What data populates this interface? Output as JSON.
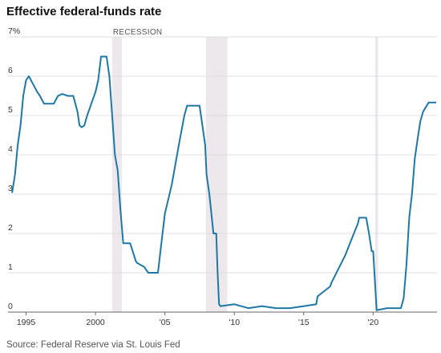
{
  "title": "Effective federal-funds rate",
  "source": "Source: Federal Reserve via St. Louis Fed",
  "chart_data": {
    "type": "line",
    "title": "Effective federal-funds rate",
    "xlabel": "",
    "ylabel": "",
    "xlim": [
      1993.7,
      2024.6
    ],
    "ylim": [
      0,
      7
    ],
    "y_ticks": [
      0,
      1,
      2,
      3,
      4,
      5,
      6,
      7
    ],
    "y_tick_labels": [
      "0",
      "1",
      "2",
      "3",
      "4",
      "5",
      "6",
      "7%"
    ],
    "x_ticks": [
      1995,
      2000,
      2005,
      2010,
      2015,
      2020
    ],
    "x_tick_labels": [
      "1995",
      "2000",
      "'05",
      "'10",
      "'15",
      "'20"
    ],
    "grid": true,
    "line_color": "#1f77a6",
    "recession_color": "#ece8ec",
    "recessions": [
      {
        "start": 2001.2,
        "end": 2001.9,
        "label": "RECESSION"
      },
      {
        "start": 2007.95,
        "end": 2009.5,
        "label": ""
      },
      {
        "start": 2020.15,
        "end": 2020.35,
        "label": ""
      }
    ],
    "series": [
      {
        "x": [
          1994.0,
          1994.2,
          1994.4,
          1994.6,
          1994.8,
          1995.0,
          1995.2,
          1995.5,
          1995.8,
          1996.0,
          1996.3,
          1996.6,
          1997.0,
          1997.3,
          1997.6,
          1998.0,
          1998.4,
          1998.7,
          1998.85,
          1999.0,
          1999.2,
          1999.4,
          1999.6,
          1999.8,
          2000.0,
          2000.2,
          2000.4,
          2000.6,
          2000.8,
          2001.0,
          2001.2,
          2001.4,
          2001.6,
          2001.8,
          2002.0,
          2002.5,
          2002.9,
          2003.0,
          2003.5,
          2003.8,
          2004.0,
          2004.5,
          2004.6,
          2005.0,
          2005.5,
          2006.0,
          2006.4,
          2006.6,
          2007.0,
          2007.5,
          2007.7,
          2007.9,
          2008.0,
          2008.2,
          2008.5,
          2008.7,
          2008.8,
          2008.9,
          2009.0,
          2010.0,
          2011.0,
          2012.0,
          2013.0,
          2014.0,
          2015.0,
          2015.9,
          2016.0,
          2016.9,
          2017.0,
          2017.5,
          2018.0,
          2018.5,
          2018.9,
          2019.0,
          2019.3,
          2019.5,
          2019.7,
          2019.9,
          2020.0,
          2020.15,
          2020.25,
          2021.0,
          2022.0,
          2022.2,
          2022.4,
          2022.6,
          2022.8,
          2023.0,
          2023.2,
          2023.4,
          2023.6,
          2024.0,
          2024.5
        ],
        "y": [
          3.05,
          3.5,
          4.25,
          4.75,
          5.5,
          5.9,
          6.0,
          5.8,
          5.6,
          5.5,
          5.3,
          5.3,
          5.3,
          5.5,
          5.55,
          5.5,
          5.5,
          5.1,
          4.75,
          4.7,
          4.75,
          5.0,
          5.2,
          5.4,
          5.6,
          5.9,
          6.5,
          6.5,
          6.5,
          6.0,
          5.0,
          4.0,
          3.6,
          2.6,
          1.75,
          1.75,
          1.3,
          1.25,
          1.15,
          1.0,
          1.0,
          1.0,
          1.3,
          2.5,
          3.25,
          4.25,
          5.0,
          5.25,
          5.25,
          5.25,
          4.75,
          4.25,
          3.5,
          3.0,
          2.0,
          2.0,
          1.0,
          0.2,
          0.15,
          0.2,
          0.1,
          0.15,
          0.1,
          0.1,
          0.15,
          0.2,
          0.4,
          0.65,
          0.75,
          1.1,
          1.45,
          1.9,
          2.25,
          2.4,
          2.4,
          2.4,
          2.0,
          1.55,
          1.55,
          0.65,
          0.05,
          0.1,
          0.1,
          0.35,
          1.2,
          2.4,
          3.0,
          3.9,
          4.4,
          4.85,
          5.1,
          5.33,
          5.33
        ]
      }
    ]
  }
}
